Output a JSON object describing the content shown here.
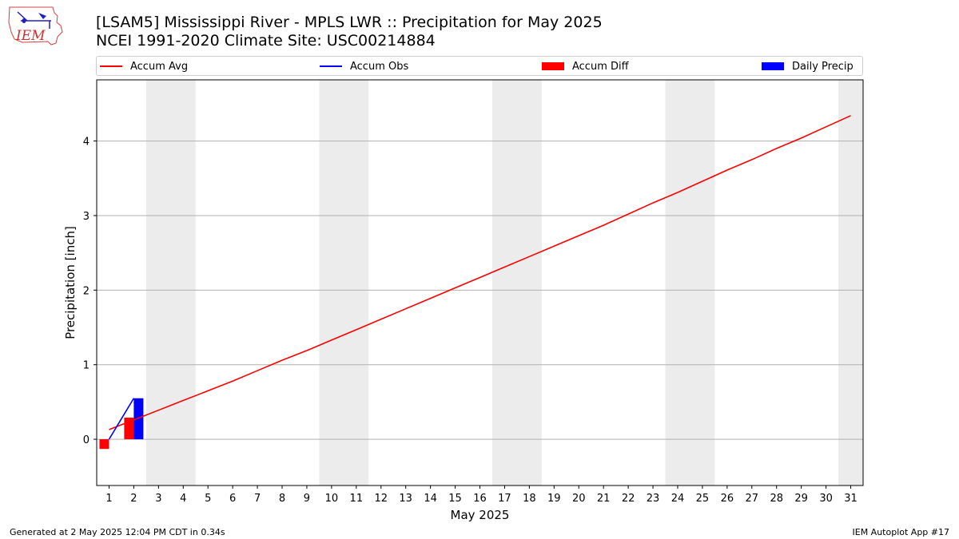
{
  "header": {
    "logo_text": "IEM",
    "title_line1": "[LSAM5] Mississippi River - MPLS LWR :: Precipitation for May 2025",
    "title_line2": "NCEI 1991-2020 Climate Site: USC00214884"
  },
  "legend": [
    {
      "label": "Accum Avg",
      "kind": "line",
      "color": "#ff0000"
    },
    {
      "label": "Accum Obs",
      "kind": "line",
      "color": "#0000ff"
    },
    {
      "label": "Accum Diff",
      "kind": "patch",
      "color": "#ff0000"
    },
    {
      "label": "Daily Precip",
      "kind": "patch",
      "color": "#0000ff"
    }
  ],
  "footer": {
    "left": "Generated at 2 May 2025 12:04 PM CDT in 0.34s",
    "right": "IEM Autoplot App #17"
  },
  "chart_data": {
    "type": "bar",
    "xlabel": "May 2025",
    "ylabel": "Precipitation [inch]",
    "xlim": [
      0.5,
      31.5
    ],
    "ylim": [
      -0.62,
      4.82
    ],
    "x_ticks": [
      1,
      2,
      3,
      4,
      5,
      6,
      7,
      8,
      9,
      10,
      11,
      12,
      13,
      14,
      15,
      16,
      17,
      18,
      19,
      20,
      21,
      22,
      23,
      24,
      25,
      26,
      27,
      28,
      29,
      30,
      31
    ],
    "y_ticks": [
      0,
      1,
      2,
      3,
      4
    ],
    "grid": "horizontal",
    "weekend_shading": [
      [
        2.5,
        4.5
      ],
      [
        9.5,
        11.5
      ],
      [
        16.5,
        18.5
      ],
      [
        23.5,
        25.5
      ],
      [
        30.5,
        31.5
      ]
    ],
    "weekend_color": "#ececec",
    "accum_avg": {
      "x": [
        1,
        2,
        3,
        4,
        5,
        6,
        7,
        8,
        9,
        10,
        11,
        12,
        13,
        14,
        15,
        16,
        17,
        18,
        19,
        20,
        21,
        22,
        23,
        24,
        25,
        26,
        27,
        28,
        29,
        30,
        31
      ],
      "y": [
        0.13,
        0.26,
        0.39,
        0.52,
        0.65,
        0.78,
        0.92,
        1.06,
        1.19,
        1.33,
        1.47,
        1.61,
        1.75,
        1.89,
        2.03,
        2.17,
        2.31,
        2.45,
        2.59,
        2.73,
        2.87,
        3.02,
        3.17,
        3.31,
        3.46,
        3.61,
        3.75,
        3.9,
        4.04,
        4.19,
        4.34
      ],
      "color": "#ff0000"
    },
    "accum_obs": {
      "x": [
        1,
        2
      ],
      "y": [
        0.0,
        0.55
      ],
      "color": "#0000ff"
    },
    "accum_diff": {
      "x": [
        1,
        2
      ],
      "values": [
        -0.13,
        0.29
      ],
      "color": "#ff0000"
    },
    "daily_precip": {
      "x": [
        1,
        2
      ],
      "values": [
        0.0,
        0.55
      ],
      "color": "#0000ff"
    },
    "legend_position": "top"
  }
}
